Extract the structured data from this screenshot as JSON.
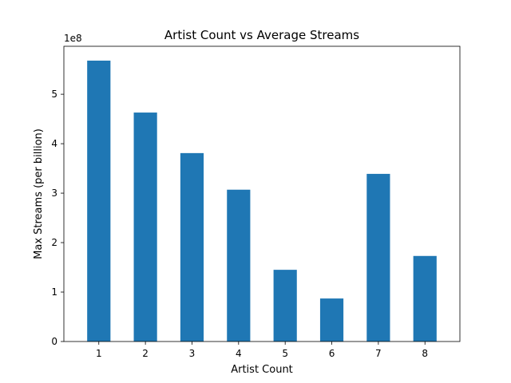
{
  "chart_data": {
    "type": "bar",
    "title": "Artist Count vs Average Streams",
    "xlabel": "Artist Count",
    "ylabel": "Max Streams (per billion)",
    "offset_text": "1e8",
    "categories": [
      "1",
      "2",
      "3",
      "4",
      "5",
      "6",
      "7",
      "8"
    ],
    "values": [
      568000000,
      463000000,
      381000000,
      307000000,
      145000000,
      87000000,
      339000000,
      173000000
    ],
    "ylim": [
      0,
      597000000
    ],
    "yticks": [
      0,
      100000000,
      200000000,
      300000000,
      400000000,
      500000000
    ],
    "ytick_labels": [
      "0",
      "1",
      "2",
      "3",
      "4",
      "5"
    ],
    "bar_color": "#1f77b4",
    "grid": false,
    "legend": "none"
  }
}
